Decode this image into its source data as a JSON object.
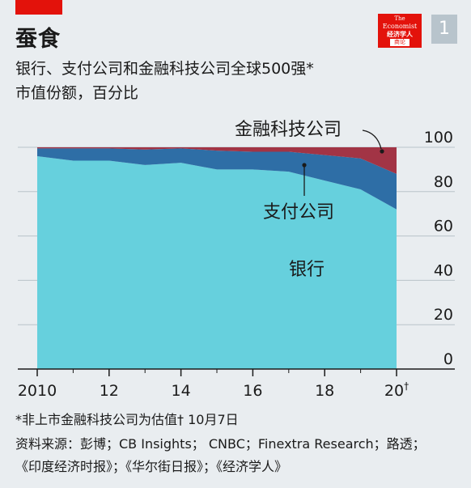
{
  "header": {
    "title": "蚕食",
    "subtitle_line1": "银行、支付公司和金融科技公司全球500强*",
    "subtitle_line2": "市值份额，百分比",
    "chart_number": "1"
  },
  "logo": {
    "line1": "The",
    "line2": "Economist",
    "line3": "经济学人",
    "line4": "商论"
  },
  "footer": {
    "footnote": "*非上市金融科技公司为估值†    10月7日",
    "sources_line1": "资料来源：彭博；CB Insights；  CNBC；Finextra Research；路透；",
    "sources_line2": "《印度经济时报》；《华尔街日报》；《经济学人》"
  },
  "colors": {
    "background": "#E9EDF0",
    "banks": "#66D0DD",
    "payments": "#2E6EA6",
    "fintech": "#A23445",
    "accent_red": "#E3120B"
  },
  "chart_data": {
    "type": "area",
    "stacked": true,
    "x": [
      2010,
      2011,
      2012,
      2013,
      2014,
      2015,
      2016,
      2017,
      2018,
      2019,
      2020
    ],
    "x_ticks": [
      2010,
      2012,
      2014,
      2016,
      2018,
      2020
    ],
    "x_tick_labels": [
      "2010",
      "12",
      "14",
      "16",
      "18",
      "20"
    ],
    "x_tick_superscript": {
      "2020": "†"
    },
    "ylim": [
      0,
      100
    ],
    "y_ticks": [
      0,
      20,
      40,
      60,
      80,
      100
    ],
    "y_tick_labels": [
      "0",
      "20",
      "40",
      "60",
      "80",
      "100"
    ],
    "grid": true,
    "y_axis_position": "right",
    "series": [
      {
        "name": "银行",
        "values": [
          96,
          94,
          94,
          92,
          93,
          90,
          90,
          89,
          85,
          81,
          72
        ]
      },
      {
        "name": "支付公司",
        "values": [
          3.5,
          5.5,
          5.5,
          7,
          6.5,
          8.5,
          8,
          9,
          11.5,
          14,
          16
        ]
      },
      {
        "name": "金融科技公司",
        "values": [
          0.5,
          0.5,
          0.5,
          1,
          0.5,
          1.5,
          2,
          2,
          3.5,
          5,
          12
        ]
      }
    ]
  }
}
